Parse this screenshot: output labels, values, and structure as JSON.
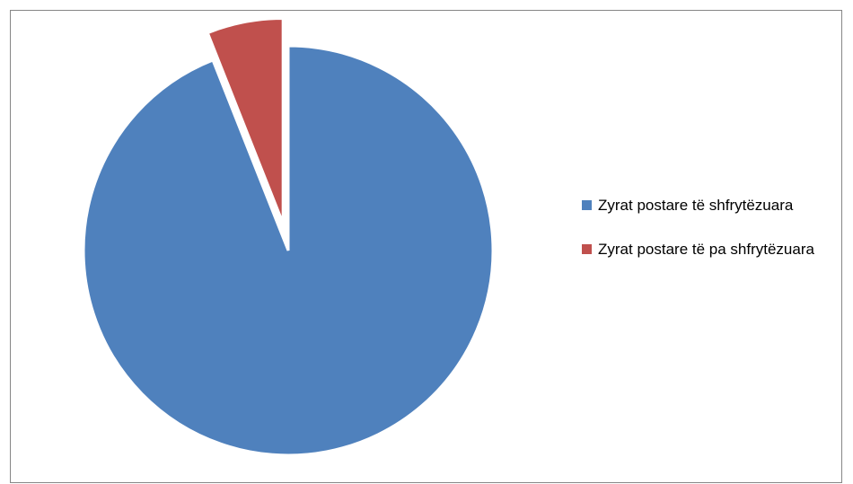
{
  "chart_data": {
    "type": "pie",
    "title": "",
    "slices": [
      {
        "label": "Zyrat postare të shfrytëzuara",
        "value": 94,
        "color": "#4F81BD",
        "exploded": false
      },
      {
        "label": "Zyrat postare të pa shfrytëzuara",
        "value": 6,
        "color": "#C0504D",
        "exploded": true
      }
    ],
    "legend_position": "right"
  }
}
